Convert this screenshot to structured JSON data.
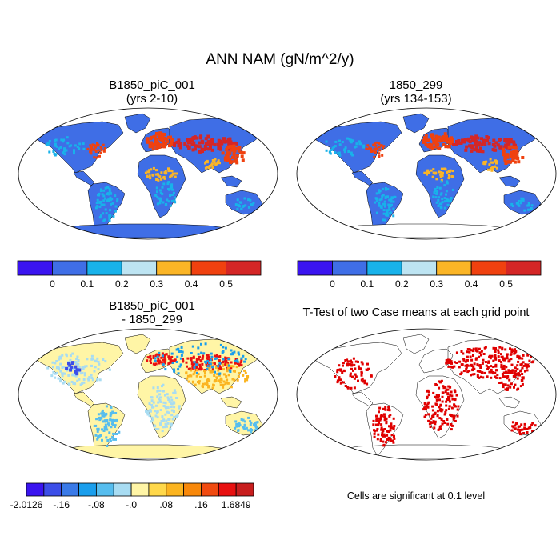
{
  "title": "ANN NAM (gN/m^2/y)",
  "panels": [
    {
      "title_line1": "B1850_piC_001",
      "title_line2": "(yrs 2-10)"
    },
    {
      "title_line1": "1850_299",
      "title_line2": "(yrs 134-153)"
    },
    {
      "title_line1": "B1850_piC_001",
      "title_line2": "- 1850_299"
    },
    {
      "title_line1": "T-Test of two Case means at each grid point",
      "title_line2": ""
    }
  ],
  "colorbar_abs": {
    "labels": [
      "0",
      "0.1",
      "0.2",
      "0.3",
      "0.4",
      "0.5"
    ],
    "colors": [
      "#3a14f0",
      "#3f6ee6",
      "#18b2ea",
      "#bde4f2",
      "#fbb526",
      "#f0410f",
      "#d42626"
    ]
  },
  "colorbar_diff": {
    "labels": [
      "-2.0126",
      "-.16",
      "-.08",
      "-.0",
      ".08",
      ".16",
      "1.6849"
    ],
    "colors": [
      "#3a14f0",
      "#3c4ee8",
      "#3a7ae8",
      "#1a9eec",
      "#56bdee",
      "#a8dcf2",
      "#fff5a6",
      "#ffd84a",
      "#fbb420",
      "#f8880a",
      "#f04a10",
      "#e81010",
      "#c81e1e"
    ]
  },
  "significance_note": "Cells are significant at 0.1 level",
  "colors": {
    "ocean": "#ffffff",
    "land_low": "#3f6ee6",
    "diff_neutral": "#fff5a6",
    "sig_cells": "#e00000"
  }
}
